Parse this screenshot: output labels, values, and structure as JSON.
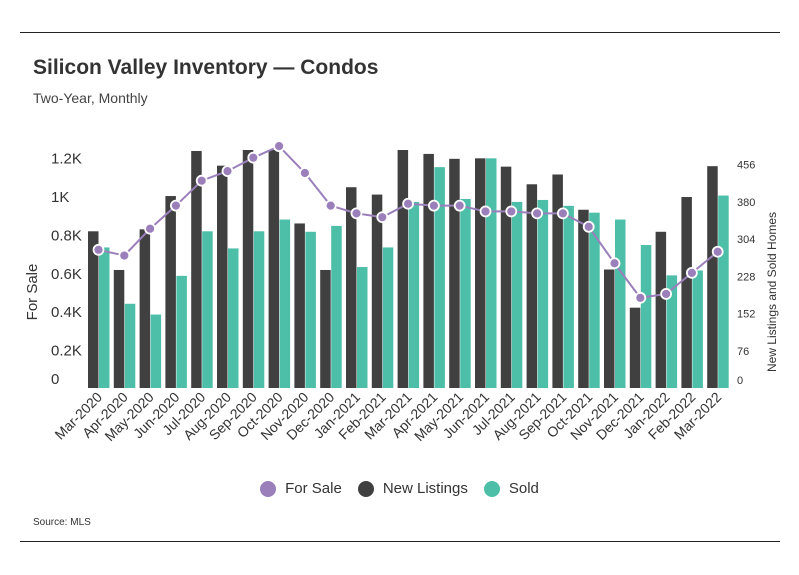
{
  "header": {
    "title": "Silicon Valley Inventory — Condos",
    "subtitle": "Two-Year, Monthly"
  },
  "footer": {
    "source": "Source:  MLS"
  },
  "colors": {
    "for_sale": "#9b7fbb",
    "new_listings": "#404040",
    "sold": "#4dbfa8"
  },
  "chart_data": {
    "type": "bar",
    "title": "Silicon Valley Inventory — Condos",
    "subtitle": "Two-Year, Monthly",
    "categories": [
      "Mar-2020",
      "Apr-2020",
      "May-2020",
      "Jun-2020",
      "Jul-2020",
      "Aug-2020",
      "Sep-2020",
      "Oct-2020",
      "Nov-2020",
      "Dec-2020",
      "Jan-2021",
      "Feb-2021",
      "Mar-2021",
      "Apr-2021",
      "May-2021",
      "Jun-2021",
      "Jul-2021",
      "Aug-2021",
      "Sep-2021",
      "Oct-2021",
      "Nov-2021",
      "Dec-2021",
      "Jan-2022",
      "Feb-2022",
      "Mar-2022"
    ],
    "ylabel_left": "For Sale",
    "ylabel_right": "New Listings and Sold Homes",
    "y_left_ticks": [
      "0",
      "0.2K",
      "0.4K",
      "0.6K",
      "0.8K",
      "1K",
      "1.2K"
    ],
    "y_left_range": [
      0,
      1240
    ],
    "y_right_ticks": [
      "0",
      "76",
      "152",
      "228",
      "304",
      "380",
      "456"
    ],
    "y_right_range": [
      0,
      486
    ],
    "series": [
      {
        "name": "New Listings",
        "kind": "bar",
        "axis": "right",
        "values": [
          320,
          241,
          324,
          392,
          484,
          454,
          486,
          486,
          336,
          241,
          410,
          395,
          486,
          478,
          468,
          469,
          452,
          416,
          436,
          364,
          242,
          164,
          319,
          390,
          453
        ]
      },
      {
        "name": "Sold",
        "kind": "bar",
        "axis": "right",
        "values": [
          287,
          172,
          150,
          229,
          320,
          285,
          320,
          344,
          319,
          331,
          247,
          287,
          380,
          451,
          386,
          469,
          380,
          384,
          372,
          358,
          344,
          292,
          230,
          240,
          393
        ]
      },
      {
        "name": "For Sale",
        "kind": "line",
        "axis": "left",
        "values": [
          720,
          690,
          830,
          950,
          1080,
          1130,
          1200,
          1260,
          1120,
          950,
          910,
          890,
          960,
          950,
          950,
          920,
          920,
          910,
          910,
          840,
          650,
          470,
          490,
          600,
          710
        ]
      }
    ],
    "legend": [
      "For Sale",
      "New Listings",
      "Sold"
    ],
    "legend_position": "bottom",
    "grid": false
  }
}
